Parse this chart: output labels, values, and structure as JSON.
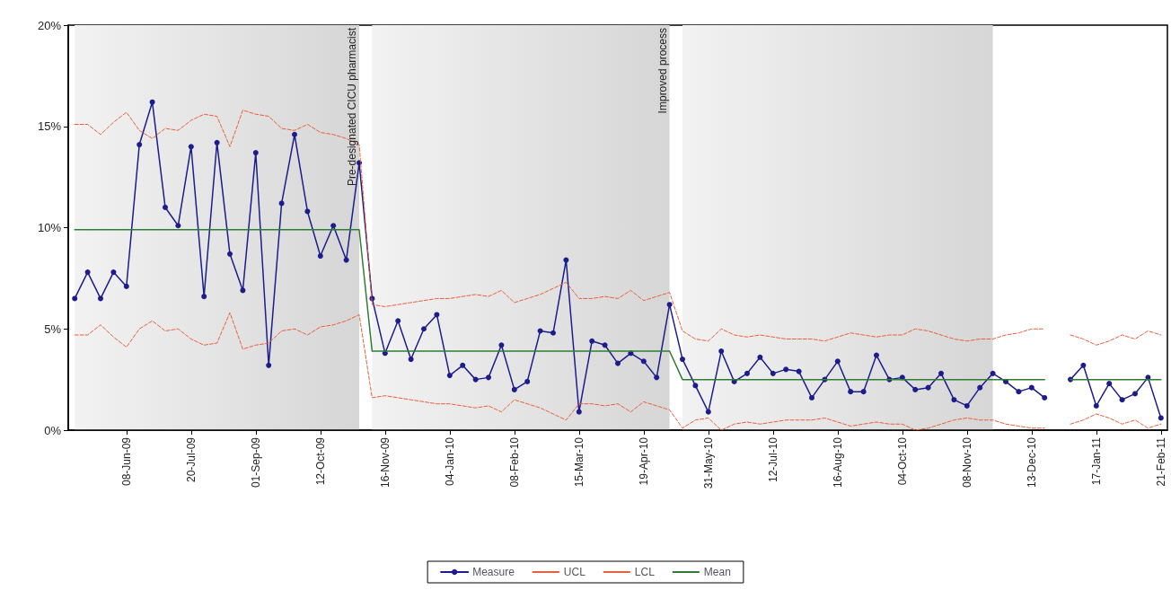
{
  "chart_data": {
    "type": "line",
    "categories": [
      null,
      null,
      null,
      null,
      "08-Jun-09",
      null,
      null,
      null,
      null,
      "20-Jul-09",
      null,
      null,
      null,
      null,
      "01-Sep-09",
      null,
      null,
      null,
      null,
      "12-Oct-09",
      null,
      null,
      null,
      null,
      "16-Nov-09",
      null,
      null,
      null,
      null,
      "04-Jan-10",
      null,
      null,
      null,
      null,
      "08-Feb-10",
      null,
      null,
      null,
      null,
      "15-Mar-10",
      null,
      null,
      null,
      null,
      "19-Apr-10",
      null,
      null,
      null,
      null,
      "31-May-10",
      null,
      null,
      null,
      null,
      "12-Jul-10",
      null,
      null,
      null,
      null,
      "16-Aug-10",
      null,
      null,
      null,
      null,
      "04-Oct-10",
      null,
      null,
      null,
      null,
      "08-Nov-10",
      null,
      null,
      null,
      null,
      "13-Dec-10",
      null,
      null,
      null,
      null,
      "17-Jan-11",
      null,
      null,
      null,
      null,
      "21-Feb-11"
    ],
    "ylim": [
      0,
      20
    ],
    "yticks": [
      {
        "value": 0,
        "label": "0%"
      },
      {
        "value": 5,
        "label": "5%"
      },
      {
        "value": 10,
        "label": "10%"
      },
      {
        "value": 15,
        "label": "15%"
      },
      {
        "value": 20,
        "label": "20%"
      }
    ],
    "grid": false,
    "legend": "bottom",
    "series": [
      {
        "name": "Measure",
        "color": "#1c1c8a",
        "marker": "circle",
        "line_style": "solid",
        "values": [
          6.5,
          7.8,
          6.5,
          7.8,
          7.1,
          14.1,
          16.2,
          11.0,
          10.1,
          14.0,
          6.6,
          14.2,
          8.7,
          6.9,
          13.7,
          3.2,
          11.2,
          14.6,
          10.8,
          8.6,
          10.1,
          8.4,
          13.2,
          6.5,
          3.8,
          5.4,
          3.5,
          5.0,
          5.7,
          2.7,
          3.2,
          2.5,
          2.6,
          4.2,
          2.0,
          2.4,
          4.9,
          4.8,
          8.4,
          0.9,
          4.4,
          4.2,
          3.3,
          3.8,
          3.4,
          2.6,
          6.2,
          3.5,
          2.2,
          0.9,
          3.9,
          2.4,
          2.8,
          3.6,
          2.8,
          3.0,
          2.9,
          1.6,
          2.5,
          3.4,
          1.9,
          1.9,
          3.7,
          2.5,
          2.6,
          2.0,
          2.1,
          2.8,
          1.5,
          1.2,
          2.1,
          2.8,
          2.4,
          1.9,
          2.1,
          1.6,
          null,
          2.5,
          3.2,
          1.2,
          2.3,
          1.5,
          1.8,
          2.6,
          0.6
        ]
      },
      {
        "name": "UCL",
        "color": "#e8603c",
        "marker": "none",
        "line_style": "dashed",
        "values": [
          15.1,
          15.1,
          14.6,
          15.2,
          15.7,
          14.8,
          14.4,
          14.9,
          14.8,
          15.3,
          15.6,
          15.5,
          14.0,
          15.8,
          15.6,
          15.5,
          14.9,
          14.8,
          15.1,
          14.7,
          14.6,
          14.4,
          14.1,
          6.2,
          6.1,
          6.2,
          6.3,
          6.4,
          6.5,
          6.5,
          6.6,
          6.7,
          6.6,
          6.9,
          6.3,
          6.5,
          6.7,
          7.0,
          7.3,
          6.5,
          6.5,
          6.6,
          6.5,
          6.9,
          6.4,
          6.6,
          6.8,
          4.9,
          4.5,
          4.4,
          5.0,
          4.7,
          4.6,
          4.7,
          4.6,
          4.5,
          4.5,
          4.5,
          4.4,
          4.6,
          4.8,
          4.7,
          4.6,
          4.7,
          4.7,
          5.0,
          4.9,
          4.7,
          4.5,
          4.4,
          4.5,
          4.5,
          4.7,
          4.8,
          5.0,
          5.0,
          null,
          4.7,
          4.5,
          4.2,
          4.4,
          4.7,
          4.5,
          4.9,
          4.7
        ]
      },
      {
        "name": "LCL",
        "color": "#e8603c",
        "marker": "none",
        "line_style": "dashed",
        "values": [
          4.7,
          4.7,
          5.2,
          4.6,
          4.1,
          5.0,
          5.4,
          4.9,
          5.0,
          4.5,
          4.2,
          4.3,
          5.8,
          4.0,
          4.2,
          4.3,
          4.9,
          5.0,
          4.7,
          5.1,
          5.2,
          5.4,
          5.7,
          1.6,
          1.7,
          1.6,
          1.5,
          1.4,
          1.3,
          1.3,
          1.2,
          1.1,
          1.2,
          0.9,
          1.5,
          1.3,
          1.1,
          0.8,
          0.5,
          1.3,
          1.3,
          1.2,
          1.3,
          0.9,
          1.4,
          1.2,
          1.0,
          0.1,
          0.5,
          0.6,
          0,
          0.3,
          0.4,
          0.3,
          0.4,
          0.5,
          0.5,
          0.5,
          0.6,
          0.4,
          0.2,
          0.3,
          0.4,
          0.3,
          0.3,
          0,
          0.1,
          0.3,
          0.5,
          0.6,
          0.5,
          0.5,
          0.3,
          0.2,
          0.1,
          0.1,
          null,
          0.3,
          0.5,
          0.8,
          0.6,
          0.3,
          0.5,
          0.1,
          0.3
        ]
      },
      {
        "name": "Mean",
        "color": "#2e7d32",
        "marker": "none",
        "line_style": "solid",
        "values": [
          9.9,
          9.9,
          9.9,
          9.9,
          9.9,
          9.9,
          9.9,
          9.9,
          9.9,
          9.9,
          9.9,
          9.9,
          9.9,
          9.9,
          9.9,
          9.9,
          9.9,
          9.9,
          9.9,
          9.9,
          9.9,
          9.9,
          9.9,
          3.9,
          3.9,
          3.9,
          3.9,
          3.9,
          3.9,
          3.9,
          3.9,
          3.9,
          3.9,
          3.9,
          3.9,
          3.9,
          3.9,
          3.9,
          3.9,
          3.9,
          3.9,
          3.9,
          3.9,
          3.9,
          3.9,
          3.9,
          3.9,
          2.5,
          2.5,
          2.5,
          2.5,
          2.5,
          2.5,
          2.5,
          2.5,
          2.5,
          2.5,
          2.5,
          2.5,
          2.5,
          2.5,
          2.5,
          2.5,
          2.5,
          2.5,
          2.5,
          2.5,
          2.5,
          2.5,
          2.5,
          2.5,
          2.5,
          2.5,
          2.5,
          2.5,
          2.5,
          null,
          2.5,
          2.5,
          2.5,
          2.5,
          2.5,
          2.5,
          2.5,
          2.5
        ]
      }
    ],
    "annotations": [
      "Pre-designated CICU pharmacist",
      "Improved process"
    ]
  }
}
